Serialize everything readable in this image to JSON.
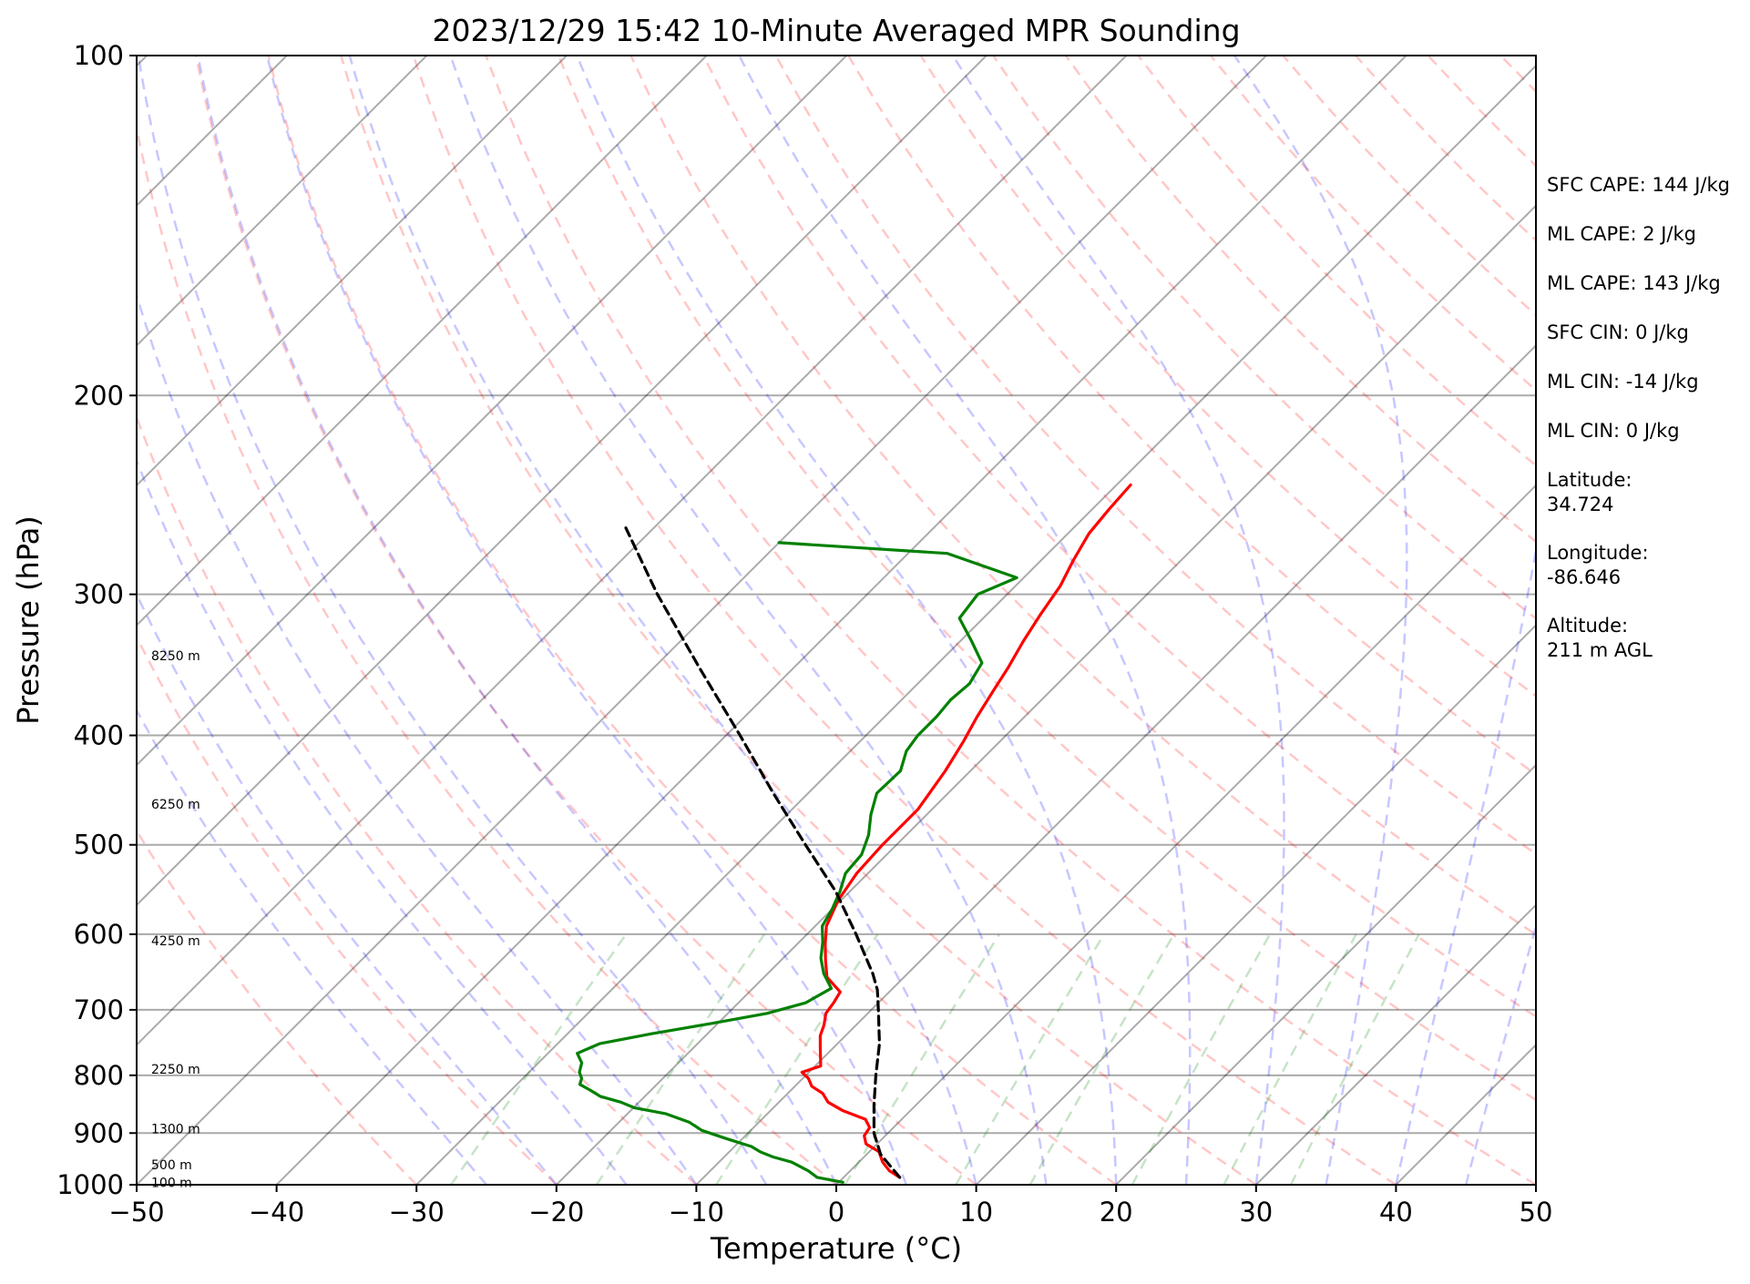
{
  "chart_data": {
    "type": "skew-t",
    "title": "2023/12/29 15:42 10-Minute Averaged MPR Sounding",
    "xlabel": "Temperature (°C)",
    "ylabel": "Pressure (hPa)",
    "xlim": [
      -50,
      50
    ],
    "ylim": [
      1000,
      100
    ],
    "y_scale": "log",
    "x_ticks": [
      -50,
      -40,
      -30,
      -20,
      -10,
      0,
      10,
      20,
      30,
      40,
      50
    ],
    "x_tick_labels": [
      "−50",
      "−40",
      "−30",
      "−20",
      "−10",
      "0",
      "10",
      "20",
      "30",
      "40",
      "50"
    ],
    "y_ticks": [
      1000,
      900,
      800,
      700,
      600,
      500,
      400,
      300,
      200,
      100
    ],
    "y_tick_labels": [
      "1000",
      "900",
      "800",
      "700",
      "600",
      "500",
      "400",
      "300",
      "200",
      "100"
    ],
    "grid": true,
    "series": [
      {
        "role": "temperature",
        "color": "#ff0000",
        "points": [
          [
            985,
            4.0
          ],
          [
            972,
            2.8
          ],
          [
            955,
            1.7
          ],
          [
            935,
            0.7
          ],
          [
            920,
            -0.8
          ],
          [
            905,
            -1.5
          ],
          [
            890,
            -1.7
          ],
          [
            875,
            -2.6
          ],
          [
            860,
            -4.8
          ],
          [
            845,
            -6.5
          ],
          [
            830,
            -7.5
          ],
          [
            818,
            -8.8
          ],
          [
            805,
            -9.6
          ],
          [
            795,
            -10.5
          ],
          [
            785,
            -9.6
          ],
          [
            772,
            -10.2
          ],
          [
            755,
            -11.0
          ],
          [
            738,
            -11.8
          ],
          [
            722,
            -12.3
          ],
          [
            705,
            -13.0
          ],
          [
            690,
            -13.2
          ],
          [
            675,
            -13.5
          ],
          [
            655,
            -15.5
          ],
          [
            633,
            -16.8
          ],
          [
            612,
            -18.0
          ],
          [
            590,
            -19.2
          ],
          [
            560,
            -20.2
          ],
          [
            530,
            -20.8
          ],
          [
            500,
            -21.0
          ],
          [
            465,
            -21.0
          ],
          [
            430,
            -21.8
          ],
          [
            405,
            -22.6
          ],
          [
            385,
            -23.4
          ],
          [
            365,
            -24.1
          ],
          [
            348,
            -24.7
          ],
          [
            330,
            -25.5
          ],
          [
            312,
            -26.2
          ],
          [
            295,
            -26.8
          ],
          [
            280,
            -27.7
          ],
          [
            265,
            -28.5
          ],
          [
            252,
            -28.8
          ],
          [
            240,
            -29.0
          ]
        ]
      },
      {
        "role": "dewpoint",
        "color": "#008000",
        "points": [
          [
            995,
            0.3
          ],
          [
            985,
            -1.9
          ],
          [
            972,
            -3.0
          ],
          [
            955,
            -4.8
          ],
          [
            945,
            -6.5
          ],
          [
            935,
            -7.8
          ],
          [
            925,
            -8.8
          ],
          [
            910,
            -11.2
          ],
          [
            895,
            -13.5
          ],
          [
            880,
            -15.0
          ],
          [
            865,
            -17.3
          ],
          [
            855,
            -19.9
          ],
          [
            845,
            -21.3
          ],
          [
            835,
            -23.2
          ],
          [
            825,
            -24.3
          ],
          [
            815,
            -25.5
          ],
          [
            805,
            -25.8
          ],
          [
            795,
            -26.4
          ],
          [
            780,
            -26.9
          ],
          [
            765,
            -27.9
          ],
          [
            750,
            -27.0
          ],
          [
            735,
            -24.0
          ],
          [
            720,
            -20.5
          ],
          [
            705,
            -17.2
          ],
          [
            690,
            -15.2
          ],
          [
            670,
            -14.4
          ],
          [
            650,
            -16.0
          ],
          [
            630,
            -17.3
          ],
          [
            610,
            -18.3
          ],
          [
            590,
            -19.5
          ],
          [
            570,
            -20.0
          ],
          [
            550,
            -20.7
          ],
          [
            530,
            -21.6
          ],
          [
            510,
            -21.8
          ],
          [
            490,
            -22.7
          ],
          [
            470,
            -24.0
          ],
          [
            450,
            -25.1
          ],
          [
            430,
            -25.0
          ],
          [
            413,
            -26.0
          ],
          [
            400,
            -26.3
          ],
          [
            385,
            -26.3
          ],
          [
            372,
            -26.5
          ],
          [
            360,
            -26.3
          ],
          [
            345,
            -26.9
          ],
          [
            330,
            -29.2
          ],
          [
            315,
            -31.7
          ],
          [
            300,
            -32.1
          ],
          [
            290,
            -30.5
          ],
          [
            276,
            -37.2
          ],
          [
            270,
            -50
          ]
        ]
      },
      {
        "role": "parcel",
        "color": "#000000",
        "points": [
          [
            985,
            4.0
          ],
          [
            940,
            1.0
          ],
          [
            900,
            -1.0
          ],
          [
            850,
            -3.0
          ],
          [
            800,
            -5.0
          ],
          [
            750,
            -7.0
          ],
          [
            700,
            -9.5
          ],
          [
            672,
            -11.0
          ],
          [
            650,
            -12.5
          ],
          [
            600,
            -16.5
          ],
          [
            550,
            -21.0
          ],
          [
            500,
            -26.5
          ],
          [
            450,
            -32.5
          ],
          [
            400,
            -39.0
          ],
          [
            350,
            -46.5
          ],
          [
            300,
            -55.0
          ],
          [
            262,
            -62.0
          ]
        ]
      }
    ],
    "height_labels": [
      {
        "p": 340,
        "text": "8250 m"
      },
      {
        "p": 460,
        "text": "6250 m"
      },
      {
        "p": 608,
        "text": "4250 m"
      },
      {
        "p": 790,
        "text": "2250 m"
      },
      {
        "p": 892,
        "text": "1300 m"
      },
      {
        "p": 960,
        "text": "500 m"
      },
      {
        "p": 995,
        "text": "100 m"
      }
    ],
    "annotations": [
      "SFC CAPE: 144 J/kg",
      "ML CAPE: 2 J/kg",
      "ML CAPE: 143 J/kg",
      "SFC CIN: 0 J/kg",
      "ML CIN: -14 J/kg",
      "ML CIN: 0 J/kg",
      "Latitude:\n34.724",
      "Longitude:\n-86.646",
      "Altitude:\n211 m AGL"
    ],
    "reference_lines": {
      "isotherm_color": "#000000",
      "dry_adiabat_color": "#ff0000",
      "moist_adiabat_color": "#0000ff",
      "mixing_ratio_color": "#008000"
    }
  }
}
